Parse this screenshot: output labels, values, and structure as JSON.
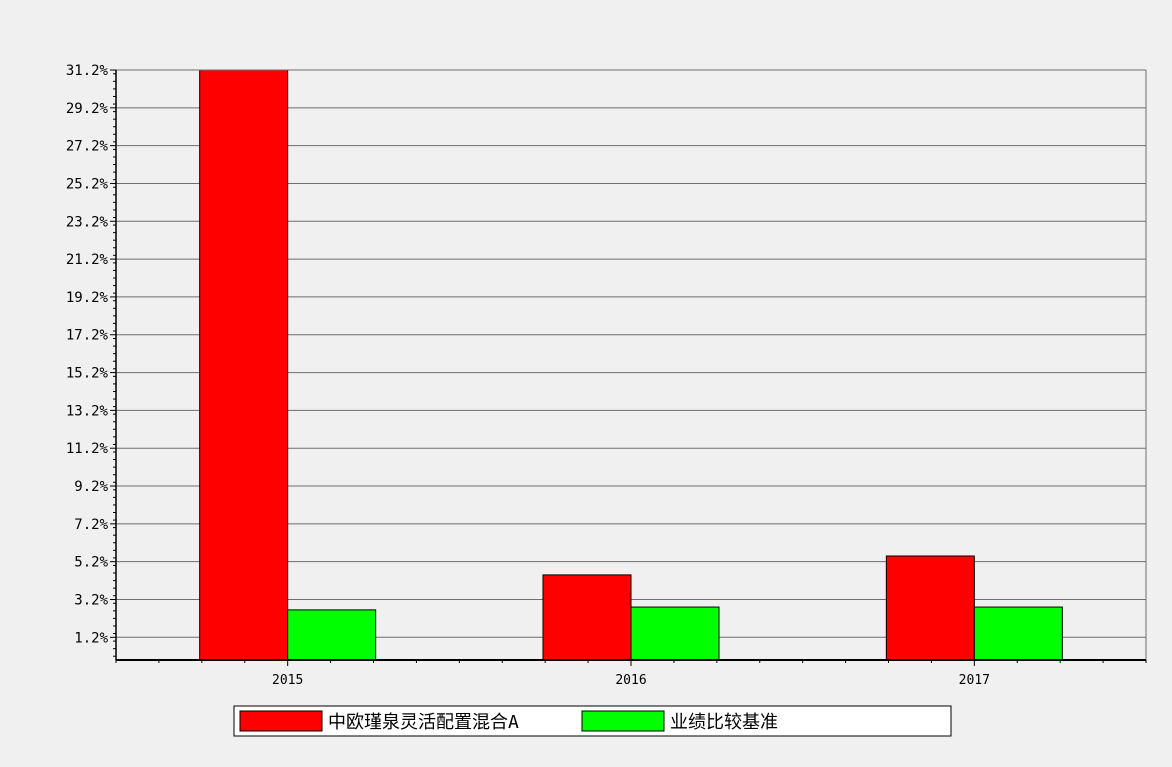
{
  "chart_data": {
    "type": "bar",
    "title": "",
    "xlabel": "",
    "ylabel": "",
    "categories": [
      "2015",
      "2016",
      "2017"
    ],
    "series": [
      {
        "name": "中欧瑾泉灵活配置混合A",
        "color": "#ff0000",
        "values": [
          31.2,
          4.5,
          5.5
        ]
      },
      {
        "name": "业绩比较基准",
        "color": "#00ff00",
        "values": [
          2.65,
          2.8,
          2.8
        ]
      }
    ],
    "y_ticks": [
      "1.2%",
      "3.2%",
      "5.2%",
      "7.2%",
      "9.2%",
      "11.2%",
      "13.2%",
      "15.2%",
      "17.2%",
      "19.2%",
      "21.2%",
      "23.2%",
      "25.2%",
      "27.2%",
      "29.2%",
      "31.2%"
    ],
    "ylim": [
      0,
      31.2
    ],
    "grid": true,
    "legend_position": "bottom-center"
  }
}
